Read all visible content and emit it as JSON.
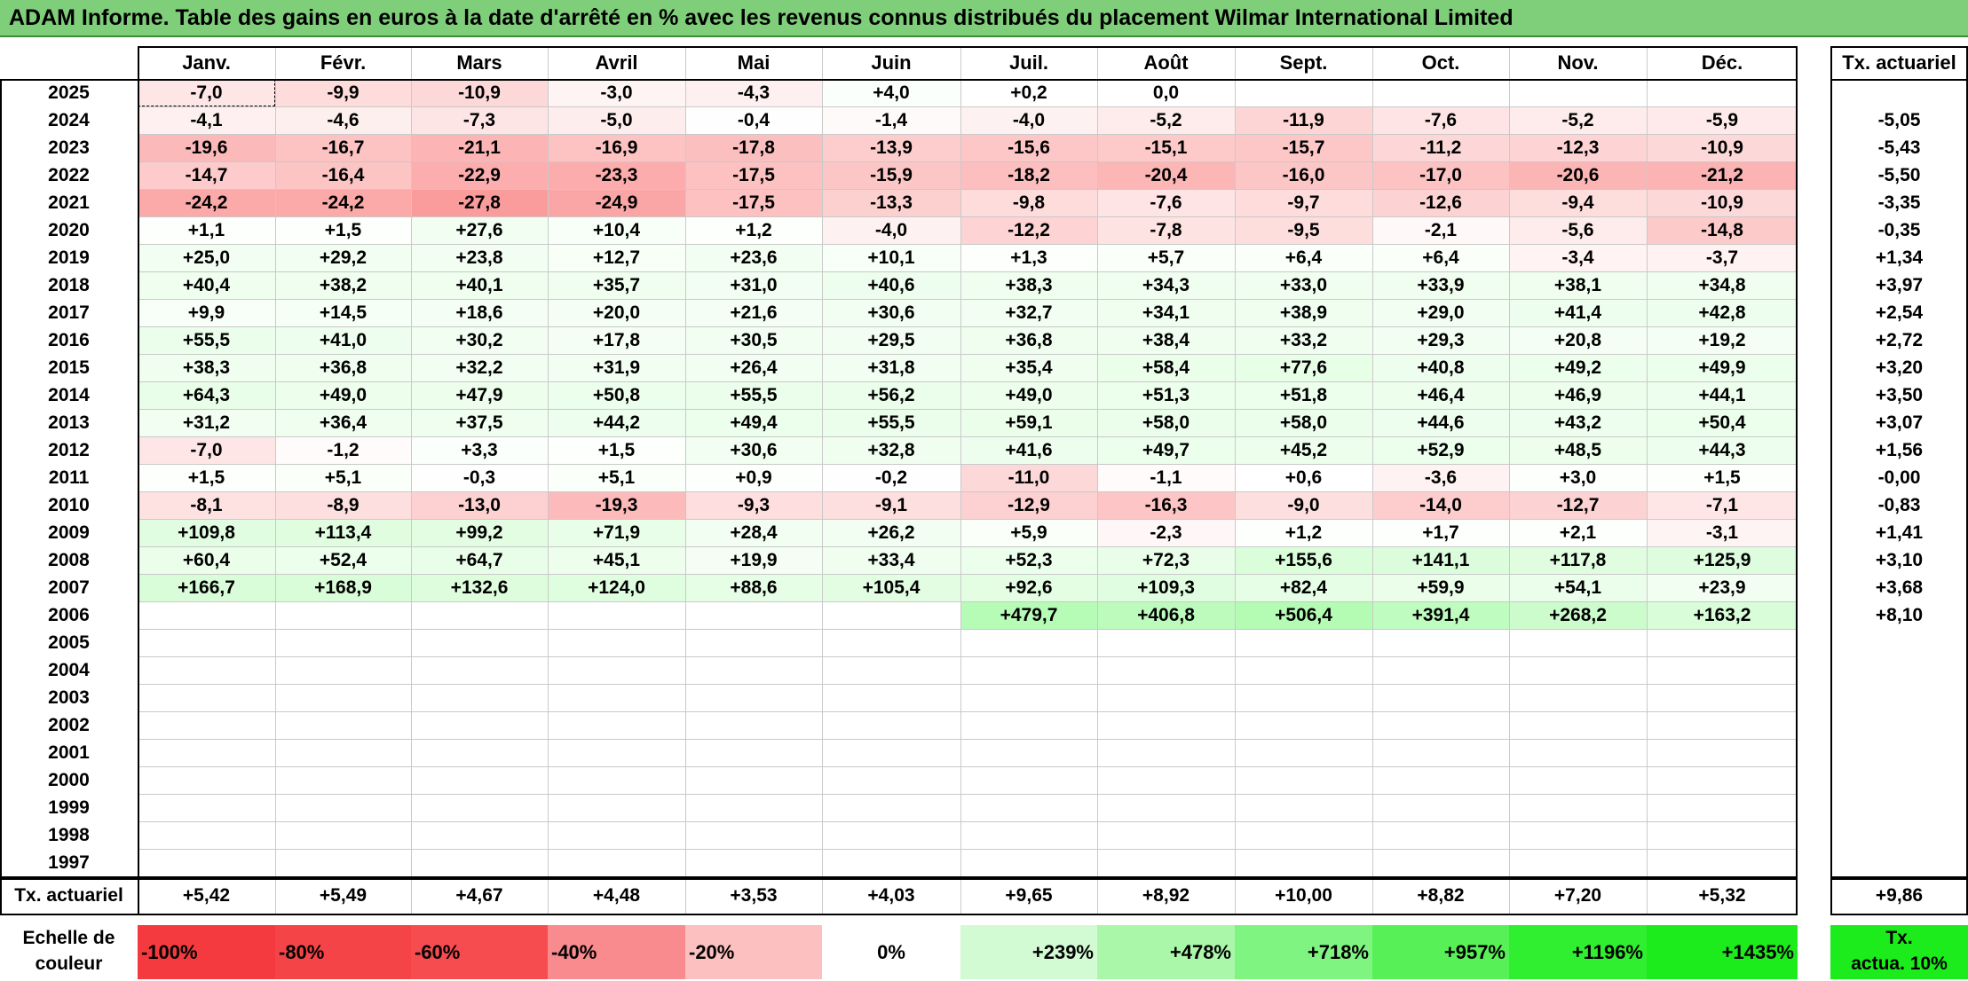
{
  "title": "ADAM Informe. Table des gains en euros à la date d'arrêté en % avec les revenus connus distribués du placement Wilmar International Limited",
  "months": [
    "Janv.",
    "Févr.",
    "Mars",
    "Avril",
    "Mai",
    "Juin",
    "Juil.",
    "Août",
    "Sept.",
    "Oct.",
    "Nov.",
    "Déc."
  ],
  "rate_header": "Tx. actuariel",
  "rows": [
    {
      "year": "2025",
      "values": [
        "-7,0",
        "-9,9",
        "-10,9",
        "-3,0",
        "-4,3",
        "+4,0",
        "+0,2",
        "0,0",
        "",
        "",
        "",
        ""
      ],
      "rate": ""
    },
    {
      "year": "2024",
      "values": [
        "-4,1",
        "-4,6",
        "-7,3",
        "-5,0",
        "-0,4",
        "-1,4",
        "-4,0",
        "-5,2",
        "-11,9",
        "-7,6",
        "-5,2",
        "-5,9"
      ],
      "rate": "-5,05"
    },
    {
      "year": "2023",
      "values": [
        "-19,6",
        "-16,7",
        "-21,1",
        "-16,9",
        "-17,8",
        "-13,9",
        "-15,6",
        "-15,1",
        "-15,7",
        "-11,2",
        "-12,3",
        "-10,9"
      ],
      "rate": "-5,43"
    },
    {
      "year": "2022",
      "values": [
        "-14,7",
        "-16,4",
        "-22,9",
        "-23,3",
        "-17,5",
        "-15,9",
        "-18,2",
        "-20,4",
        "-16,0",
        "-17,0",
        "-20,6",
        "-21,2"
      ],
      "rate": "-5,50"
    },
    {
      "year": "2021",
      "values": [
        "-24,2",
        "-24,2",
        "-27,8",
        "-24,9",
        "-17,5",
        "-13,3",
        "-9,8",
        "-7,6",
        "-9,7",
        "-12,6",
        "-9,4",
        "-10,9"
      ],
      "rate": "-3,35"
    },
    {
      "year": "2020",
      "values": [
        "+1,1",
        "+1,5",
        "+27,6",
        "+10,4",
        "+1,2",
        "-4,0",
        "-12,2",
        "-7,8",
        "-9,5",
        "-2,1",
        "-5,6",
        "-14,8"
      ],
      "rate": "-0,35"
    },
    {
      "year": "2019",
      "values": [
        "+25,0",
        "+29,2",
        "+23,8",
        "+12,7",
        "+23,6",
        "+10,1",
        "+1,3",
        "+5,7",
        "+6,4",
        "+6,4",
        "-3,4",
        "-3,7"
      ],
      "rate": "+1,34"
    },
    {
      "year": "2018",
      "values": [
        "+40,4",
        "+38,2",
        "+40,1",
        "+35,7",
        "+31,0",
        "+40,6",
        "+38,3",
        "+34,3",
        "+33,0",
        "+33,9",
        "+38,1",
        "+34,8"
      ],
      "rate": "+3,97"
    },
    {
      "year": "2017",
      "values": [
        "+9,9",
        "+14,5",
        "+18,6",
        "+20,0",
        "+21,6",
        "+30,6",
        "+32,7",
        "+34,1",
        "+38,9",
        "+29,0",
        "+41,4",
        "+42,8"
      ],
      "rate": "+2,54"
    },
    {
      "year": "2016",
      "values": [
        "+55,5",
        "+41,0",
        "+30,2",
        "+17,8",
        "+30,5",
        "+29,5",
        "+36,8",
        "+38,4",
        "+33,2",
        "+29,3",
        "+20,8",
        "+19,2"
      ],
      "rate": "+2,72"
    },
    {
      "year": "2015",
      "values": [
        "+38,3",
        "+36,8",
        "+32,2",
        "+31,9",
        "+26,4",
        "+31,8",
        "+35,4",
        "+58,4",
        "+77,6",
        "+40,8",
        "+49,2",
        "+49,9"
      ],
      "rate": "+3,20"
    },
    {
      "year": "2014",
      "values": [
        "+64,3",
        "+49,0",
        "+47,9",
        "+50,8",
        "+55,5",
        "+56,2",
        "+49,0",
        "+51,3",
        "+51,8",
        "+46,4",
        "+46,9",
        "+44,1"
      ],
      "rate": "+3,50"
    },
    {
      "year": "2013",
      "values": [
        "+31,2",
        "+36,4",
        "+37,5",
        "+44,2",
        "+49,4",
        "+55,5",
        "+59,1",
        "+58,0",
        "+58,0",
        "+44,6",
        "+43,2",
        "+50,4"
      ],
      "rate": "+3,07"
    },
    {
      "year": "2012",
      "values": [
        "-7,0",
        "-1,2",
        "+3,3",
        "+1,5",
        "+30,6",
        "+32,8",
        "+41,6",
        "+49,7",
        "+45,2",
        "+52,9",
        "+48,5",
        "+44,3"
      ],
      "rate": "+1,56"
    },
    {
      "year": "2011",
      "values": [
        "+1,5",
        "+5,1",
        "-0,3",
        "+5,1",
        "+0,9",
        "-0,2",
        "-11,0",
        "-1,1",
        "+0,6",
        "-3,6",
        "+3,0",
        "+1,5"
      ],
      "rate": "-0,00"
    },
    {
      "year": "2010",
      "values": [
        "-8,1",
        "-8,9",
        "-13,0",
        "-19,3",
        "-9,3",
        "-9,1",
        "-12,9",
        "-16,3",
        "-9,0",
        "-14,0",
        "-12,7",
        "-7,1"
      ],
      "rate": "-0,83"
    },
    {
      "year": "2009",
      "values": [
        "+109,8",
        "+113,4",
        "+99,2",
        "+71,9",
        "+28,4",
        "+26,2",
        "+5,9",
        "-2,3",
        "+1,2",
        "+1,7",
        "+2,1",
        "-3,1"
      ],
      "rate": "+1,41"
    },
    {
      "year": "2008",
      "values": [
        "+60,4",
        "+52,4",
        "+64,7",
        "+45,1",
        "+19,9",
        "+33,4",
        "+52,3",
        "+72,3",
        "+155,6",
        "+141,1",
        "+117,8",
        "+125,9"
      ],
      "rate": "+3,10"
    },
    {
      "year": "2007",
      "values": [
        "+166,7",
        "+168,9",
        "+132,6",
        "+124,0",
        "+88,6",
        "+105,4",
        "+92,6",
        "+109,3",
        "+82,4",
        "+59,9",
        "+54,1",
        "+23,9"
      ],
      "rate": "+3,68"
    },
    {
      "year": "2006",
      "values": [
        "",
        "",
        "",
        "",
        "",
        "",
        "+479,7",
        "+406,8",
        "+506,4",
        "+391,4",
        "+268,2",
        "+163,2"
      ],
      "rate": "+8,10"
    },
    {
      "year": "2005",
      "values": [
        "",
        "",
        "",
        "",
        "",
        "",
        "",
        "",
        "",
        "",
        "",
        ""
      ],
      "rate": ""
    },
    {
      "year": "2004",
      "values": [
        "",
        "",
        "",
        "",
        "",
        "",
        "",
        "",
        "",
        "",
        "",
        ""
      ],
      "rate": ""
    },
    {
      "year": "2003",
      "values": [
        "",
        "",
        "",
        "",
        "",
        "",
        "",
        "",
        "",
        "",
        "",
        ""
      ],
      "rate": ""
    },
    {
      "year": "2002",
      "values": [
        "",
        "",
        "",
        "",
        "",
        "",
        "",
        "",
        "",
        "",
        "",
        ""
      ],
      "rate": ""
    },
    {
      "year": "2001",
      "values": [
        "",
        "",
        "",
        "",
        "",
        "",
        "",
        "",
        "",
        "",
        "",
        ""
      ],
      "rate": ""
    },
    {
      "year": "2000",
      "values": [
        "",
        "",
        "",
        "",
        "",
        "",
        "",
        "",
        "",
        "",
        "",
        ""
      ],
      "rate": ""
    },
    {
      "year": "1999",
      "values": [
        "",
        "",
        "",
        "",
        "",
        "",
        "",
        "",
        "",
        "",
        "",
        ""
      ],
      "rate": ""
    },
    {
      "year": "1998",
      "values": [
        "",
        "",
        "",
        "",
        "",
        "",
        "",
        "",
        "",
        "",
        "",
        ""
      ],
      "rate": ""
    },
    {
      "year": "1997",
      "values": [
        "",
        "",
        "",
        "",
        "",
        "",
        "",
        "",
        "",
        "",
        "",
        ""
      ],
      "rate": ""
    }
  ],
  "footer": {
    "label": "Tx. actuariel",
    "values": [
      "+5,42",
      "+5,49",
      "+4,67",
      "+4,48",
      "+3,53",
      "+4,03",
      "+9,65",
      "+8,92",
      "+10,00",
      "+8,82",
      "+7,20",
      "+5,32"
    ],
    "rate": "+9,86"
  },
  "scale": {
    "label_line1": "Echelle de",
    "label_line2": "couleur",
    "items": [
      {
        "text": "-100%",
        "color": "#f43a3f",
        "align": "left"
      },
      {
        "text": "-80%",
        "color": "#f54448",
        "align": "left"
      },
      {
        "text": "-60%",
        "color": "#f64c50",
        "align": "left"
      },
      {
        "text": "-40%",
        "color": "#f98a8d",
        "align": "left"
      },
      {
        "text": "-20%",
        "color": "#fcc0c1",
        "align": "left"
      },
      {
        "text": "0%",
        "color": "#ffffff",
        "align": "center"
      },
      {
        "text": "+239%",
        "color": "#d3fbd3",
        "align": "right"
      },
      {
        "text": "+478%",
        "color": "#aaf7aa",
        "align": "right"
      },
      {
        "text": "+718%",
        "color": "#80f480",
        "align": "right"
      },
      {
        "text": "+957%",
        "color": "#57f157",
        "align": "right"
      },
      {
        "text": "+1196%",
        "color": "#30ee30",
        "align": "right"
      },
      {
        "text": "+1435%",
        "color": "#1cec1c",
        "align": "right"
      }
    ],
    "rate_line1": "Tx.",
    "rate_line2": "actua. 10%",
    "rate_color": "#1cec1c"
  },
  "colors": {
    "negative_max": "#fb9b9b",
    "positive_max": "#b4fbb4",
    "title_bg": "#7fcf7a"
  }
}
